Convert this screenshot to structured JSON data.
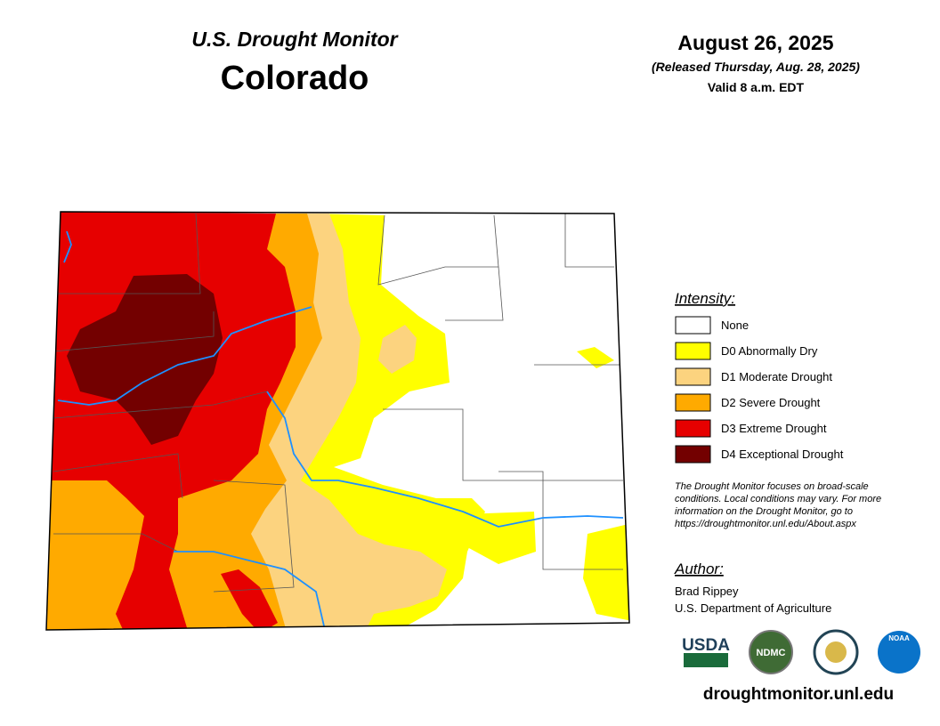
{
  "header": {
    "subtitle": "U.S. Drought Monitor",
    "title": "Colorado",
    "date": "August 26, 2025",
    "released": "(Released Thursday, Aug. 28, 2025)",
    "valid": "Valid 8 a.m. EDT"
  },
  "legend": {
    "title": "Intensity:",
    "items": [
      {
        "label": "None",
        "color": "#ffffff"
      },
      {
        "label": "D0 Abnormally Dry",
        "color": "#ffff00"
      },
      {
        "label": "D1 Moderate Drought",
        "color": "#fcd37f"
      },
      {
        "label": "D2 Severe Drought",
        "color": "#ffaa00"
      },
      {
        "label": "D3 Extreme Drought",
        "color": "#e60000"
      },
      {
        "label": "D4 Exceptional Drought",
        "color": "#730000"
      }
    ]
  },
  "note": [
    "The Drought Monitor focuses on broad-scale",
    "conditions. Local conditions may vary. For more",
    "information on the Drought Monitor, go to",
    "https://droughtmonitor.unl.edu/About.aspx"
  ],
  "author": {
    "title": "Author:",
    "name": "Brad Rippey",
    "org": "U.S. Department of Agriculture"
  },
  "logos": [
    "USDA",
    "NDMC",
    "NOAA"
  ],
  "url": "droughtmonitor.unl.edu"
}
